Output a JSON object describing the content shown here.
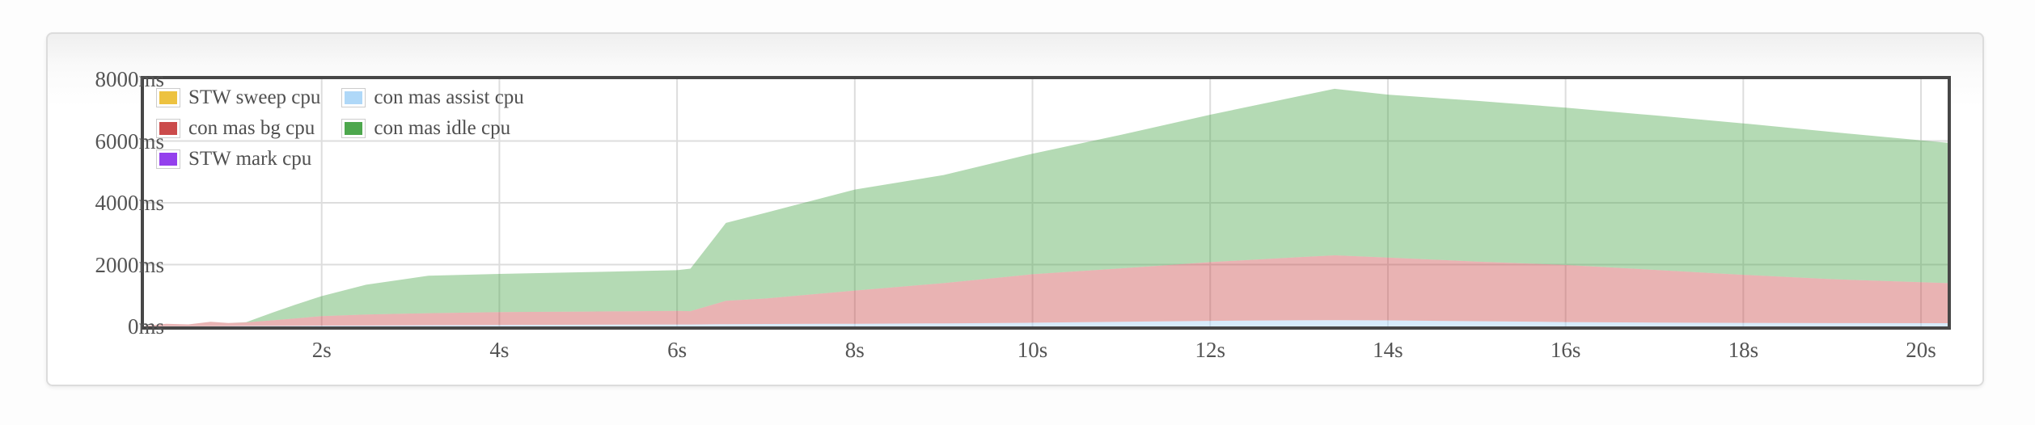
{
  "chart_data": {
    "type": "area",
    "stacked": true,
    "title": "",
    "x_unit": "seconds",
    "y_unit": "ms",
    "xlim": [
      0,
      20.3
    ],
    "ylim": [
      0,
      8000
    ],
    "grid": true,
    "legend_position": "top-left",
    "x_tick_values": [
      2,
      4,
      6,
      8,
      10,
      12,
      14,
      16,
      18,
      20
    ],
    "x_tick_labels": [
      "2s",
      "4s",
      "6s",
      "8s",
      "10s",
      "12s",
      "14s",
      "16s",
      "18s",
      "20s"
    ],
    "y_tick_values": [
      0,
      2000,
      4000,
      6000,
      8000
    ],
    "y_tick_labels": [
      "0ms",
      "2000ms",
      "4000ms",
      "6000ms",
      "8000ms"
    ],
    "legend_order": [
      "STW sweep cpu",
      "con mas assist cpu",
      "con mas bg cpu",
      "con mas idle cpu",
      "STW mark cpu"
    ],
    "x": [
      0,
      0.25,
      0.5,
      0.75,
      0.95,
      1.15,
      1.45,
      1.7,
      2,
      2.5,
      3.2,
      4,
      5,
      6,
      6.15,
      6.55,
      7,
      8,
      9,
      10,
      11,
      12,
      13,
      13.4,
      14,
      15,
      16,
      17,
      18,
      19,
      20.3
    ],
    "series_note": "stack_top values are cumulative stacked tops in ms as read from the chart; bands are drawn between consecutive stack tops",
    "series": [
      {
        "name": "STW sweep cpu",
        "color": "#edc240",
        "fill_opacity": 0.42,
        "stack_top": [
          0,
          0,
          0,
          0,
          0,
          0,
          0,
          0,
          0,
          0,
          0,
          0,
          0,
          0,
          0,
          0,
          0,
          0,
          0,
          0,
          0,
          0,
          0,
          0,
          0,
          0,
          0,
          0,
          0,
          0,
          0
        ]
      },
      {
        "name": "STW mark cpu",
        "color": "#9440ed",
        "fill_opacity": 0.42,
        "stack_top": [
          0,
          0,
          0,
          0,
          0,
          0,
          0,
          0,
          0,
          0,
          0,
          0,
          0,
          0,
          0,
          0,
          0,
          0,
          0,
          0,
          0,
          0,
          0,
          0,
          0,
          0,
          0,
          0,
          0,
          0,
          0
        ]
      },
      {
        "name": "con mas assist cpu",
        "color": "#afd8f8",
        "fill_opacity": 0.5,
        "stack_top": [
          0,
          4,
          6,
          8,
          10,
          12,
          16,
          20,
          25,
          30,
          38,
          46,
          54,
          62,
          64,
          72,
          78,
          85,
          100,
          120,
          150,
          180,
          200,
          205,
          195,
          170,
          140,
          125,
          115,
          108,
          105
        ]
      },
      {
        "name": "con mas bg cpu",
        "color": "#cb4b4b",
        "fill_opacity": 0.42,
        "stack_top": [
          8,
          85,
          65,
          150,
          110,
          130,
          200,
          260,
          335,
          385,
          430,
          465,
          480,
          505,
          495,
          830,
          905,
          1160,
          1400,
          1690,
          1880,
          2080,
          2240,
          2300,
          2230,
          2100,
          1990,
          1830,
          1670,
          1530,
          1400
        ]
      },
      {
        "name": "con mas idle cpu",
        "color": "#4da74d",
        "fill_opacity": 0.42,
        "stack_top": [
          8,
          85,
          65,
          150,
          110,
          135,
          450,
          700,
          980,
          1350,
          1640,
          1700,
          1760,
          1820,
          1870,
          3350,
          3680,
          4430,
          4900,
          5590,
          6200,
          6850,
          7450,
          7690,
          7500,
          7300,
          7080,
          6830,
          6570,
          6290,
          5940
        ]
      }
    ],
    "grid_color": "#dddddd",
    "plot_border_color": "#474747"
  }
}
